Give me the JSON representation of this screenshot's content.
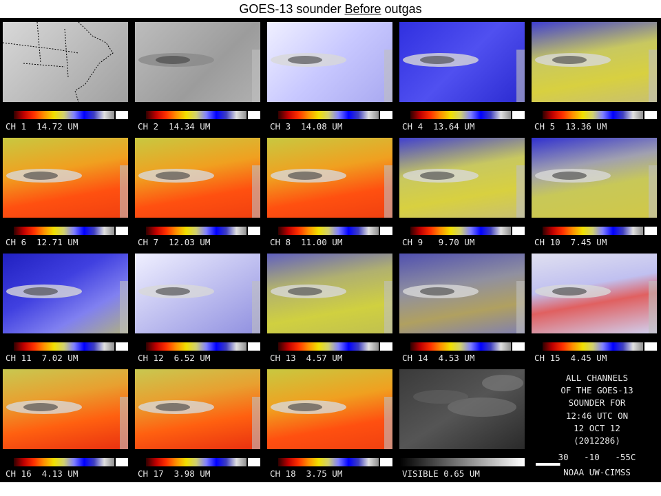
{
  "title": {
    "before": "GOES-13 sounder ",
    "underlined": "Before",
    "after": " outgas"
  },
  "channels": [
    {
      "ch": "1",
      "wavelength": "14.72",
      "unit": "UM",
      "style": "map"
    },
    {
      "ch": "2",
      "wavelength": "14.34",
      "unit": "UM",
      "style": "gray"
    },
    {
      "ch": "3",
      "wavelength": "14.08",
      "unit": "UM",
      "style": "lightblue"
    },
    {
      "ch": "4",
      "wavelength": "13.64",
      "unit": "UM",
      "style": "blue"
    },
    {
      "ch": "5",
      "wavelength": "13.36",
      "unit": "UM",
      "style": "yellowblue"
    },
    {
      "ch": "6",
      "wavelength": "12.71",
      "unit": "UM",
      "style": "warm"
    },
    {
      "ch": "7",
      "wavelength": "12.03",
      "unit": "UM",
      "style": "warm"
    },
    {
      "ch": "8",
      "wavelength": "11.00",
      "unit": "UM",
      "style": "warm"
    },
    {
      "ch": "9",
      "wavelength": "9.70",
      "unit": "UM",
      "style": "yellowblue"
    },
    {
      "ch": "10",
      "wavelength": "7.45",
      "unit": "UM",
      "style": "yellowblue2"
    },
    {
      "ch": "11",
      "wavelength": "7.02",
      "unit": "UM",
      "style": "blue2"
    },
    {
      "ch": "12",
      "wavelength": "6.52",
      "unit": "UM",
      "style": "paleblue"
    },
    {
      "ch": "13",
      "wavelength": "4.57",
      "unit": "UM",
      "style": "noisyyellow"
    },
    {
      "ch": "14",
      "wavelength": "4.53",
      "unit": "UM",
      "style": "noisy"
    },
    {
      "ch": "15",
      "wavelength": "4.45",
      "unit": "UM",
      "style": "noisyred"
    },
    {
      "ch": "16",
      "wavelength": "4.13",
      "unit": "UM",
      "style": "warm2"
    },
    {
      "ch": "17",
      "wavelength": "3.98",
      "unit": "UM",
      "style": "warm2"
    },
    {
      "ch": "18",
      "wavelength": "3.75",
      "unit": "UM",
      "style": "warm"
    }
  ],
  "visible": {
    "label": "VISIBLE 0.65 UM"
  },
  "info": {
    "lines": [
      "ALL CHANNELS",
      "OF THE GOES-13",
      "SOUNDER FOR",
      "12:46 UTC ON",
      "12 OCT 12",
      "(2012286)"
    ],
    "scale": "30   -10   -55C",
    "credit": "NOAA UW-CIMSS"
  },
  "colors": {
    "background": "#000000",
    "label_text": "#e8e8e8",
    "colorbar": [
      "#300000",
      "#c00000",
      "#ff3000",
      "#ff9000",
      "#f0e000",
      "#d0d070",
      "#8080ff",
      "#0000ff",
      "#4040c0",
      "#e0e0e0",
      "#909090"
    ]
  }
}
